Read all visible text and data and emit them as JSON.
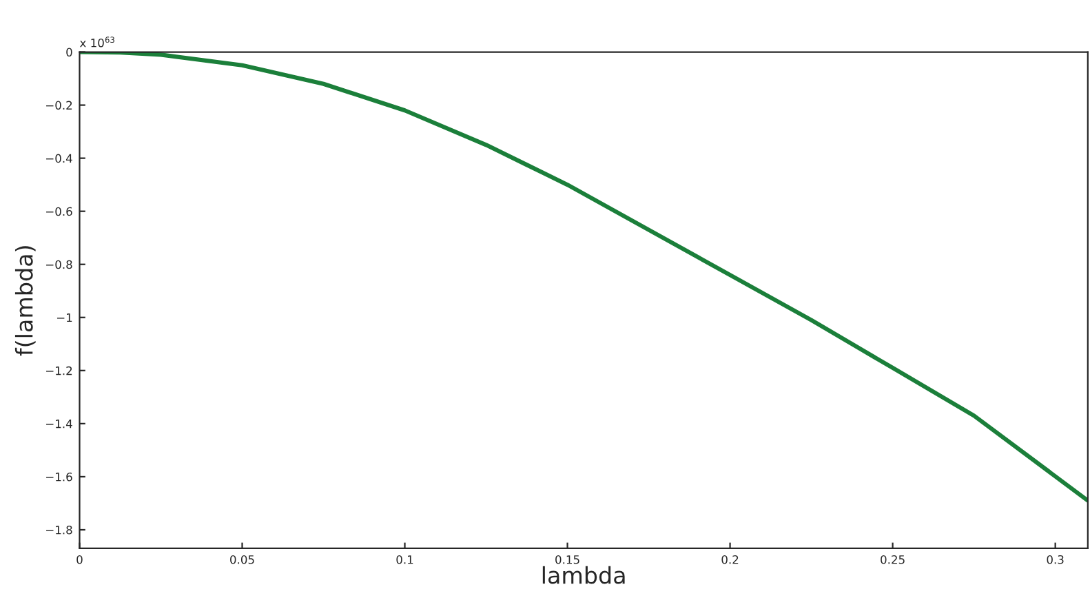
{
  "chart_data": {
    "type": "line",
    "xlabel": "lambda",
    "ylabel": "f(lambda)",
    "annotations": [
      "x 10$^{63}$"
    ],
    "series": [
      {
        "color": "#1b7f3a",
        "x": [
          0,
          0.0125,
          0.025,
          0.05,
          0.075,
          0.1,
          0.125,
          0.15,
          0.175,
          0.2,
          0.225,
          0.25,
          0.275,
          0.31
        ],
        "values": [
          0,
          -0.002,
          -0.01,
          -0.05,
          -0.12,
          -0.22,
          -0.35,
          -0.5,
          -0.67,
          -0.84,
          -1.01,
          -1.19,
          -1.37,
          -1.69
        ]
      }
    ],
    "xlim": [
      0,
      0.31
    ],
    "xticks": [
      0,
      0.05,
      0.1,
      0.15,
      0.2,
      0.25,
      0.3
    ],
    "ylim": [
      -1.87,
      0
    ],
    "yticks": [
      {
        "value": 0,
        "label": "0"
      },
      {
        "value": -0.2,
        "label": "−0.2"
      },
      {
        "value": -0.4,
        "label": "−0.4"
      },
      {
        "value": -0.6,
        "label": "−0.6"
      },
      {
        "value": -0.8,
        "label": "−0.8"
      },
      {
        "value": -1,
        "label": "−1"
      },
      {
        "value": -1.2,
        "label": "−1.2"
      },
      {
        "value": -1.4,
        "label": "−1.4"
      },
      {
        "value": -1.6,
        "label": "−1.6"
      },
      {
        "value": -1.8,
        "label": "−1.8"
      }
    ],
    "grid": false,
    "legend": false,
    "line_style": "solid",
    "marker": "none"
  }
}
